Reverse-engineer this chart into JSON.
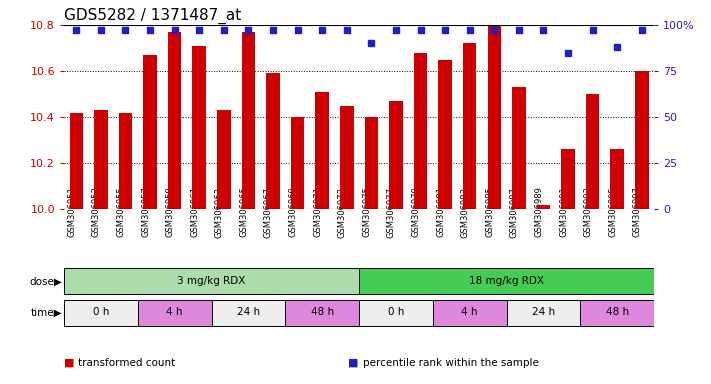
{
  "title": "GDS5282 / 1371487_at",
  "samples": [
    "GSM306951",
    "GSM306953",
    "GSM306955",
    "GSM306957",
    "GSM306959",
    "GSM306961",
    "GSM306963",
    "GSM306965",
    "GSM306967",
    "GSM306969",
    "GSM306971",
    "GSM306973",
    "GSM306975",
    "GSM306977",
    "GSM306979",
    "GSM306981",
    "GSM306983",
    "GSM306985",
    "GSM306987",
    "GSM306989",
    "GSM306991",
    "GSM306993",
    "GSM306995",
    "GSM306997"
  ],
  "transformed_count": [
    10.42,
    10.43,
    10.42,
    10.67,
    10.77,
    10.71,
    10.43,
    10.77,
    10.59,
    10.4,
    10.51,
    10.45,
    10.4,
    10.47,
    10.68,
    10.65,
    10.72,
    10.8,
    10.53,
    10.02,
    10.26,
    10.5,
    10.26,
    10.6
  ],
  "percentile_rank": [
    97,
    97,
    97,
    97,
    97,
    97,
    97,
    97,
    97,
    97,
    97,
    97,
    90,
    97,
    97,
    97,
    97,
    97,
    97,
    97,
    85,
    97,
    88,
    97
  ],
  "bar_color": "#cc0000",
  "dot_color": "#2222bb",
  "ymin": 10.0,
  "ymax": 10.8,
  "y_ticks": [
    10.0,
    10.2,
    10.4,
    10.6,
    10.8
  ],
  "y2min": 0,
  "y2max": 100,
  "y2_ticks": [
    0,
    25,
    50,
    75,
    100
  ],
  "y2_labels": [
    "0",
    "25",
    "50",
    "75",
    "100%"
  ],
  "dose_groups": [
    {
      "label": "3 mg/kg RDX",
      "start": 0,
      "end": 12,
      "color": "#aaddaa"
    },
    {
      "label": "18 mg/kg RDX",
      "start": 12,
      "end": 24,
      "color": "#44cc55"
    }
  ],
  "time_groups": [
    {
      "label": "0 h",
      "start": 0,
      "end": 3,
      "color": "#eeeeee"
    },
    {
      "label": "4 h",
      "start": 3,
      "end": 6,
      "color": "#dd88dd"
    },
    {
      "label": "24 h",
      "start": 6,
      "end": 9,
      "color": "#eeeeee"
    },
    {
      "label": "48 h",
      "start": 9,
      "end": 12,
      "color": "#dd88dd"
    },
    {
      "label": "0 h",
      "start": 12,
      "end": 15,
      "color": "#eeeeee"
    },
    {
      "label": "4 h",
      "start": 15,
      "end": 18,
      "color": "#dd88dd"
    },
    {
      "label": "24 h",
      "start": 18,
      "end": 21,
      "color": "#eeeeee"
    },
    {
      "label": "48 h",
      "start": 21,
      "end": 24,
      "color": "#dd88dd"
    }
  ],
  "legend_items": [
    {
      "label": "transformed count",
      "color": "#cc0000"
    },
    {
      "label": "percentile rank within the sample",
      "color": "#2222bb"
    }
  ],
  "bg": "#ffffff",
  "tick_left_color": "#cc0000",
  "tick_right_color": "#2222bb",
  "title_fontsize": 11,
  "label_fontsize": 8,
  "bar_width": 0.55
}
